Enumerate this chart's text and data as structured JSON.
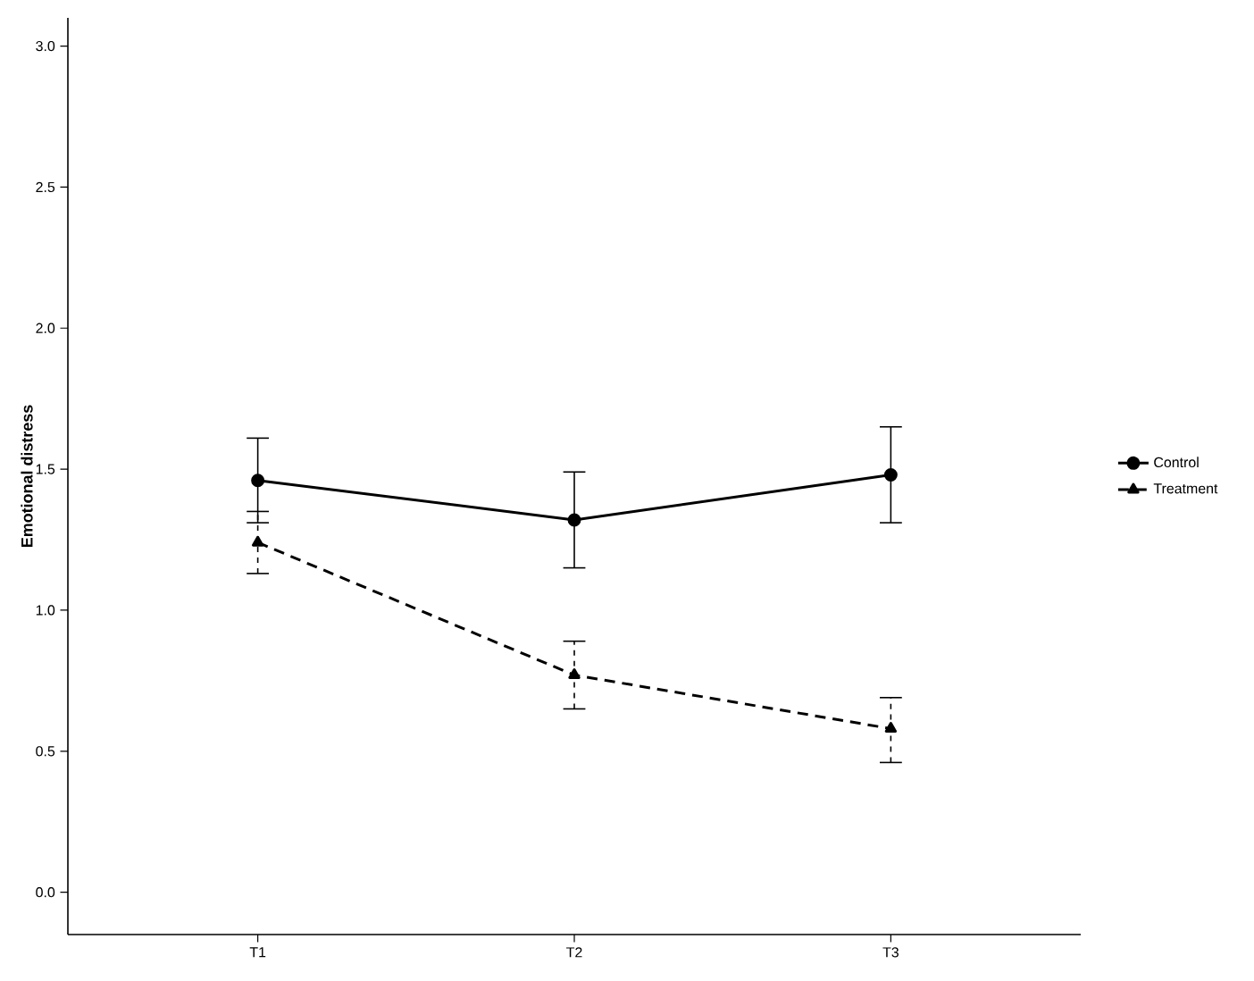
{
  "chart_data": {
    "type": "line",
    "ylabel": "Emotional distress",
    "categories": [
      "T1",
      "T2",
      "T3"
    ],
    "series": [
      {
        "name": "Control",
        "color": "#000000",
        "marker": "circle",
        "line_style": "solid",
        "values": [
          1.46,
          1.32,
          1.48
        ],
        "errors": [
          [
            1.31,
            1.61
          ],
          [
            1.15,
            1.49
          ],
          [
            1.31,
            1.65
          ]
        ]
      },
      {
        "name": "Treatment",
        "color": "#000000",
        "marker": "triangle",
        "line_style": "dashed",
        "values": [
          1.24,
          0.77,
          0.58
        ],
        "errors": [
          [
            1.13,
            1.35
          ],
          [
            0.65,
            0.89
          ],
          [
            0.46,
            0.69
          ]
        ]
      }
    ],
    "ylim": [
      -0.15,
      3.1
    ],
    "yticks": [
      {
        "value": 0,
        "label": "0.0"
      },
      {
        "value": 0.5,
        "label": "0.5"
      },
      {
        "value": 1,
        "label": "1.0"
      },
      {
        "value": 1.5,
        "label": "1.5"
      },
      {
        "value": 2,
        "label": "2.0"
      },
      {
        "value": 2.5,
        "label": "2.5"
      },
      {
        "value": 3,
        "label": "3.0"
      }
    ],
    "grid": false,
    "legend": "right"
  }
}
